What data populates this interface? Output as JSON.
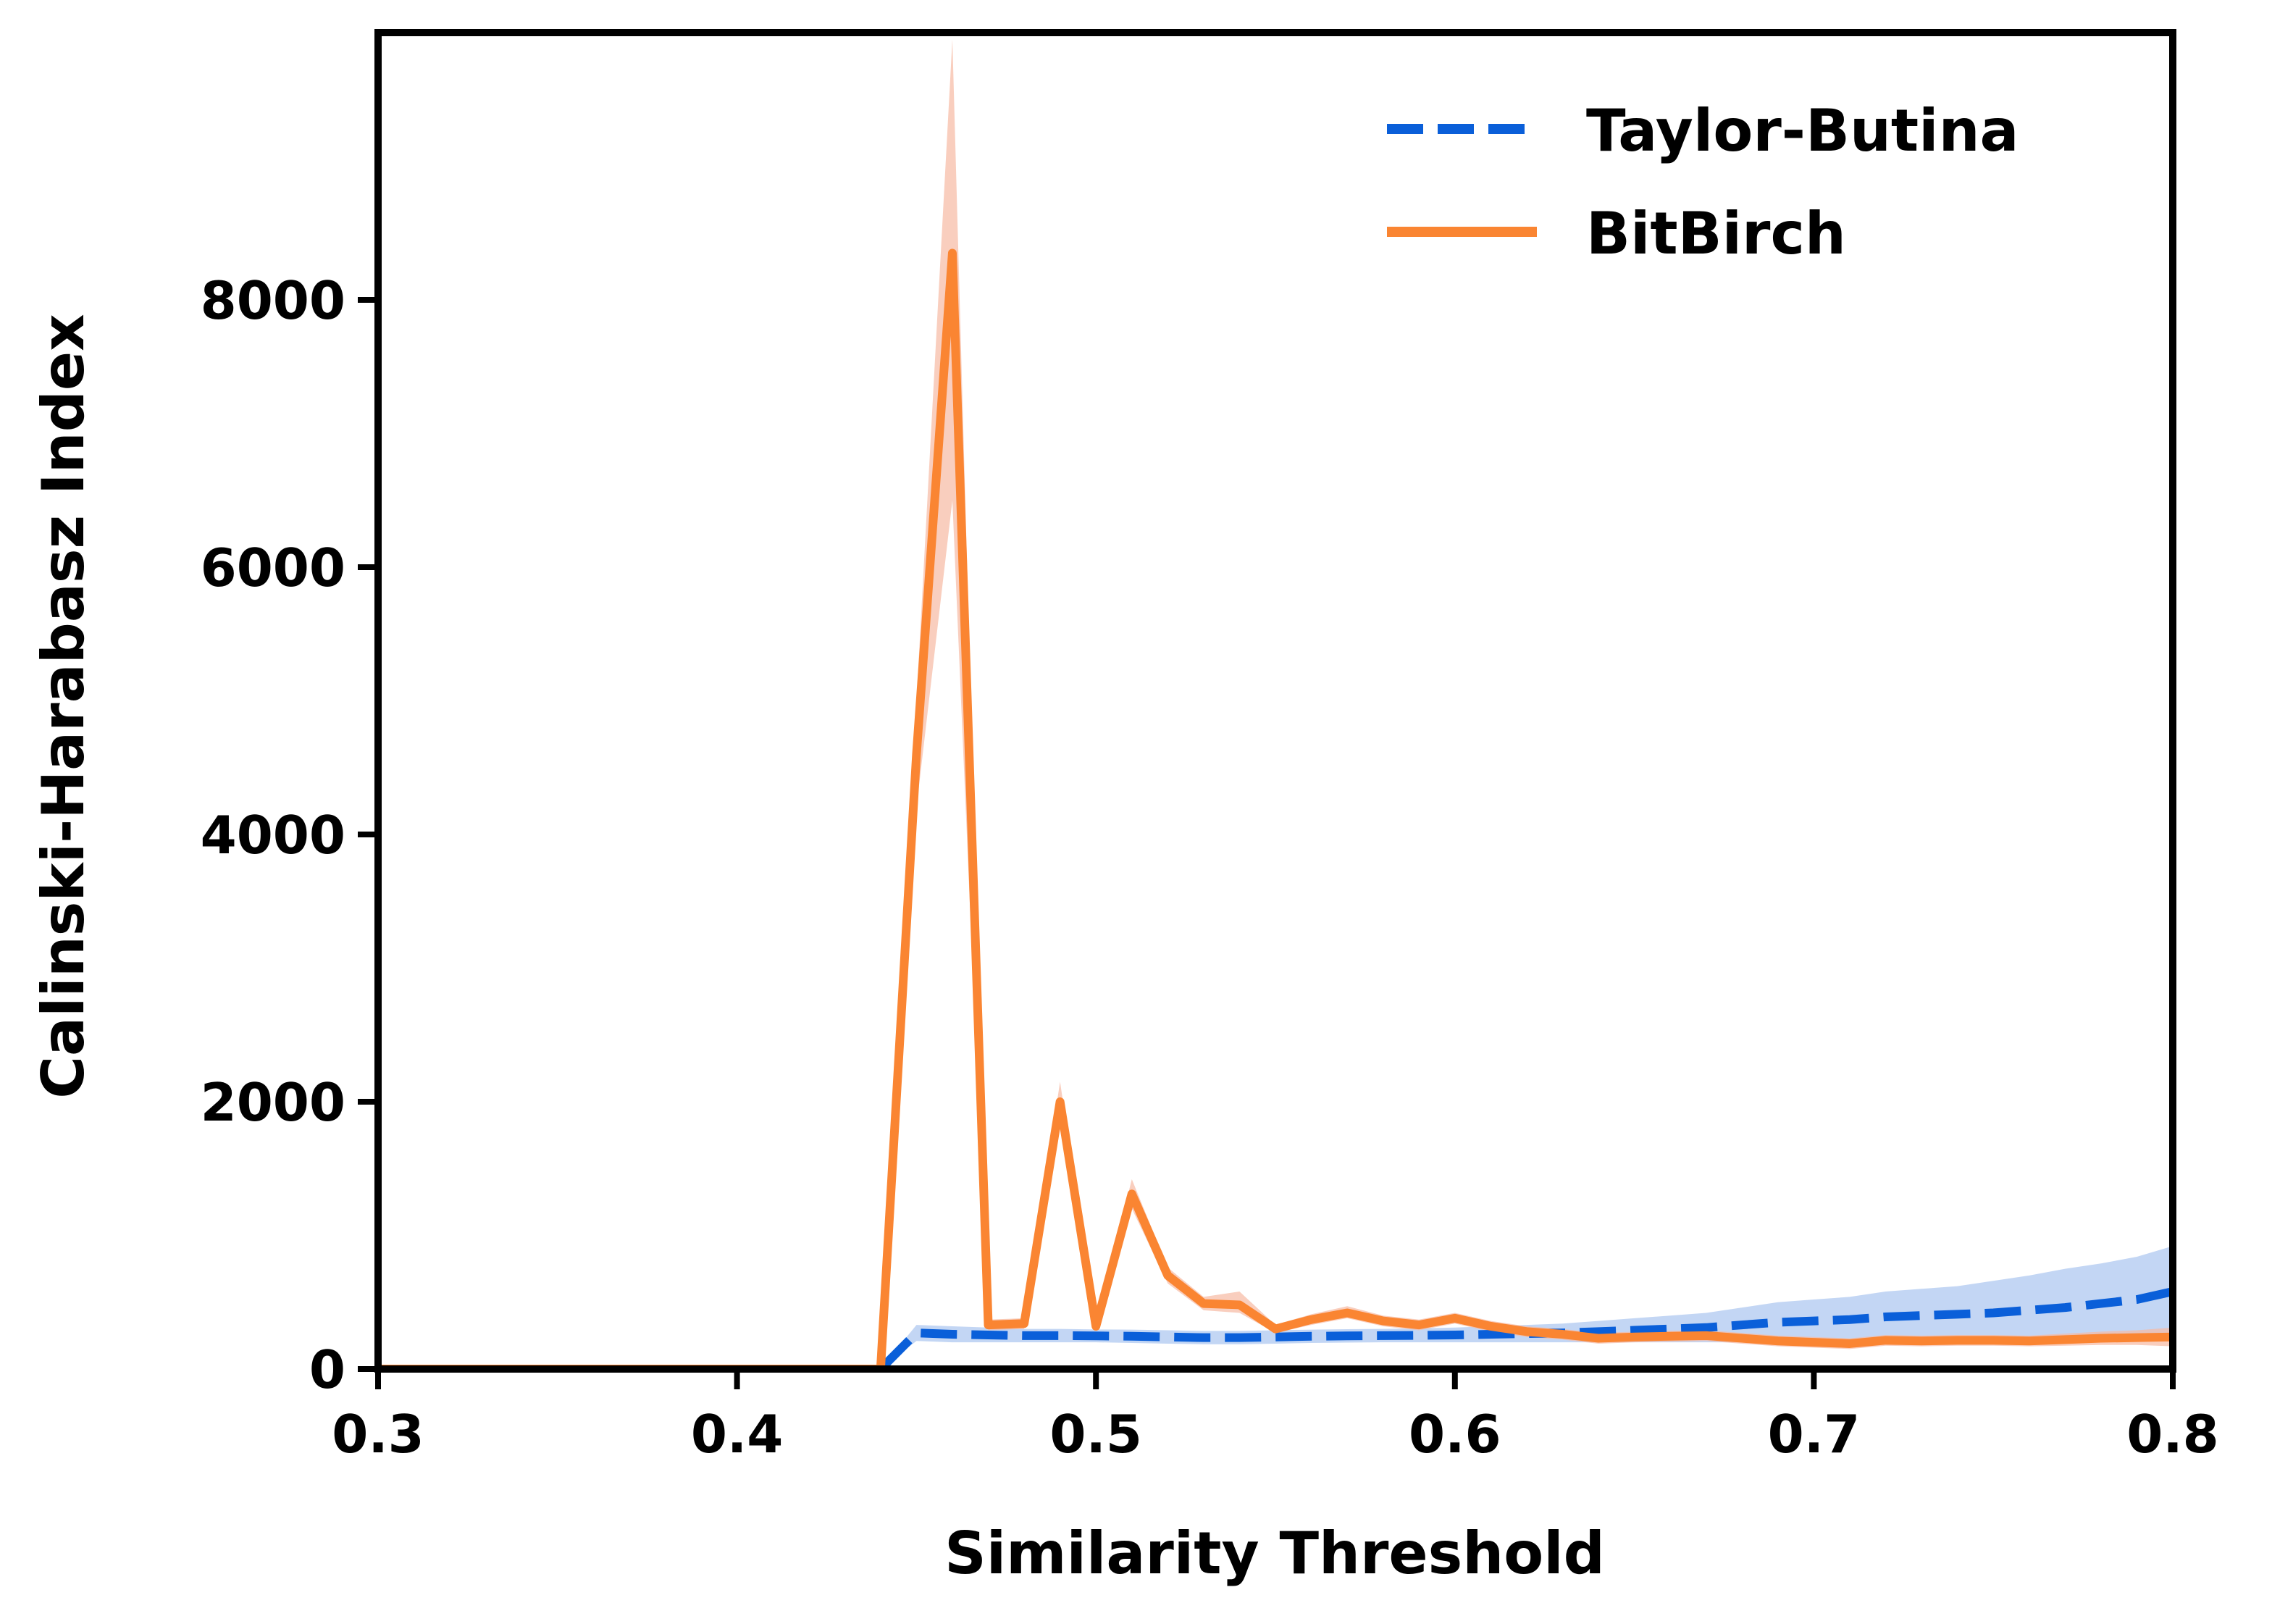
{
  "chart_data": {
    "type": "line",
    "title": "",
    "xlabel": "Similarity Threshold",
    "ylabel": "Calinski-Harabasz Index",
    "xlim": [
      0.3,
      0.8
    ],
    "ylim": [
      0,
      10000
    ],
    "xticks": [
      0.3,
      0.4,
      0.5,
      0.6,
      0.7,
      0.8
    ],
    "xtick_labels": [
      "0.3",
      "0.4",
      "0.5",
      "0.6",
      "0.7",
      "0.8"
    ],
    "yticks": [
      0,
      2000,
      4000,
      6000,
      8000
    ],
    "ytick_labels": [
      "0",
      "2000",
      "4000",
      "6000",
      "8000"
    ],
    "grid": false,
    "legend_position": "top-right",
    "series": [
      {
        "name": "Taylor-Butina",
        "color": "#0a5fd9",
        "band_color": "#a9c5ef",
        "style": "dashed",
        "x": [
          0.3,
          0.31,
          0.32,
          0.33,
          0.34,
          0.35,
          0.36,
          0.37,
          0.38,
          0.39,
          0.4,
          0.41,
          0.42,
          0.43,
          0.44,
          0.45,
          0.46,
          0.47,
          0.48,
          0.49,
          0.5,
          0.51,
          0.52,
          0.53,
          0.54,
          0.55,
          0.56,
          0.57,
          0.58,
          0.59,
          0.6,
          0.61,
          0.62,
          0.63,
          0.64,
          0.65,
          0.66,
          0.67,
          0.68,
          0.69,
          0.7,
          0.71,
          0.72,
          0.73,
          0.74,
          0.75,
          0.76,
          0.77,
          0.78,
          0.79,
          0.8
        ],
        "y": [
          0,
          0,
          0,
          0,
          0,
          0,
          0,
          0,
          0,
          0,
          0,
          0,
          0,
          0,
          0,
          270,
          260,
          255,
          250,
          250,
          248,
          245,
          240,
          235,
          235,
          240,
          245,
          248,
          250,
          252,
          255,
          260,
          265,
          270,
          280,
          290,
          300,
          310,
          330,
          350,
          360,
          370,
          390,
          400,
          410,
          420,
          440,
          460,
          490,
          520,
          580
        ],
        "lower": [
          0,
          0,
          0,
          0,
          0,
          0,
          0,
          0,
          0,
          0,
          0,
          0,
          0,
          0,
          0,
          210,
          200,
          200,
          200,
          200,
          200,
          195,
          190,
          185,
          185,
          190,
          195,
          198,
          200,
          200,
          200,
          200,
          200,
          200,
          200,
          200,
          200,
          200,
          200,
          200,
          200,
          200,
          200,
          200,
          200,
          200,
          210,
          220,
          230,
          250,
          270
        ],
        "upper": [
          0,
          0,
          0,
          0,
          0,
          0,
          0,
          0,
          0,
          0,
          0,
          0,
          0,
          0,
          0,
          330,
          320,
          310,
          300,
          300,
          296,
          295,
          290,
          285,
          285,
          290,
          295,
          298,
          300,
          304,
          310,
          320,
          330,
          340,
          360,
          380,
          400,
          420,
          460,
          500,
          520,
          540,
          580,
          600,
          620,
          660,
          700,
          750,
          790,
          840,
          920
        ]
      },
      {
        "name": "BitBirch",
        "color": "#fa8532",
        "band_color": "#f7b9a3",
        "style": "solid",
        "x": [
          0.3,
          0.31,
          0.32,
          0.33,
          0.34,
          0.35,
          0.36,
          0.37,
          0.38,
          0.39,
          0.4,
          0.41,
          0.42,
          0.43,
          0.44,
          0.45,
          0.46,
          0.47,
          0.48,
          0.49,
          0.5,
          0.51,
          0.52,
          0.53,
          0.54,
          0.55,
          0.56,
          0.57,
          0.58,
          0.59,
          0.6,
          0.61,
          0.62,
          0.63,
          0.64,
          0.65,
          0.66,
          0.67,
          0.68,
          0.69,
          0.7,
          0.71,
          0.72,
          0.73,
          0.74,
          0.75,
          0.76,
          0.77,
          0.78,
          0.79,
          0.8
        ],
        "y": [
          0,
          0,
          0,
          0,
          0,
          0,
          0,
          0,
          0,
          0,
          0,
          0,
          0,
          0,
          0,
          4600,
          8350,
          330,
          340,
          2000,
          320,
          1310,
          700,
          490,
          480,
          300,
          370,
          420,
          360,
          330,
          380,
          320,
          280,
          260,
          230,
          240,
          245,
          250,
          230,
          210,
          200,
          190,
          215,
          210,
          215,
          215,
          210,
          220,
          230,
          235,
          240
        ],
        "lower": [
          0,
          0,
          0,
          0,
          0,
          0,
          0,
          0,
          0,
          0,
          0,
          0,
          0,
          0,
          0,
          4200,
          6500,
          290,
          300,
          1850,
          280,
          1200,
          640,
          440,
          420,
          270,
          330,
          380,
          320,
          290,
          340,
          280,
          240,
          220,
          190,
          200,
          205,
          210,
          190,
          170,
          160,
          150,
          175,
          170,
          175,
          175,
          170,
          175,
          180,
          180,
          170
        ],
        "upper": [
          0,
          0,
          0,
          0,
          0,
          0,
          0,
          0,
          0,
          0,
          0,
          0,
          0,
          0,
          0,
          5000,
          9950,
          370,
          380,
          2150,
          360,
          1420,
          760,
          540,
          580,
          330,
          410,
          470,
          400,
          370,
          420,
          360,
          320,
          300,
          270,
          280,
          285,
          290,
          270,
          250,
          240,
          230,
          255,
          250,
          255,
          255,
          250,
          265,
          280,
          290,
          310
        ]
      }
    ]
  }
}
